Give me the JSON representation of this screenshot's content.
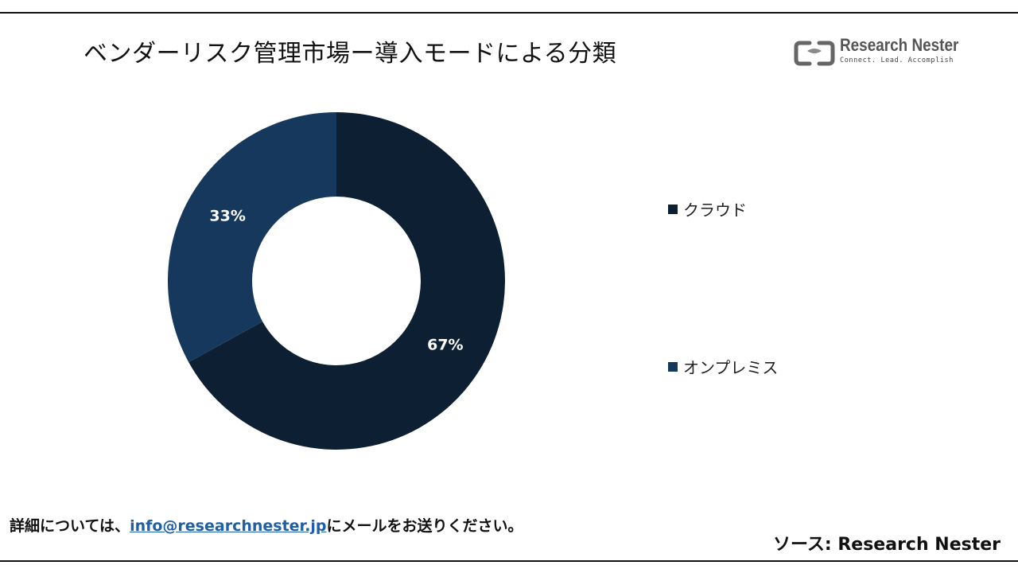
{
  "header": {
    "title": "ベンダーリスク管理市場ー導入モードによる分類"
  },
  "logo": {
    "brand": "Research Nester",
    "tagline": "Connect. Lead. Accomplish",
    "icon": "research-nester-logo-icon"
  },
  "chart_data": {
    "type": "pie",
    "donut": true,
    "categories": [
      "クラウド",
      "オンプレミス"
    ],
    "values": [
      67,
      33
    ],
    "labels": [
      "67%",
      "33%"
    ],
    "colors": [
      "#0d1f33",
      "#15385c"
    ],
    "legend_placement": "right"
  },
  "footer": {
    "contact_prefix": "詳細については、",
    "contact_email": "info@researchnester.jp",
    "contact_suffix": "にメールをお送りください。",
    "source": "ソース: Research Nester"
  }
}
